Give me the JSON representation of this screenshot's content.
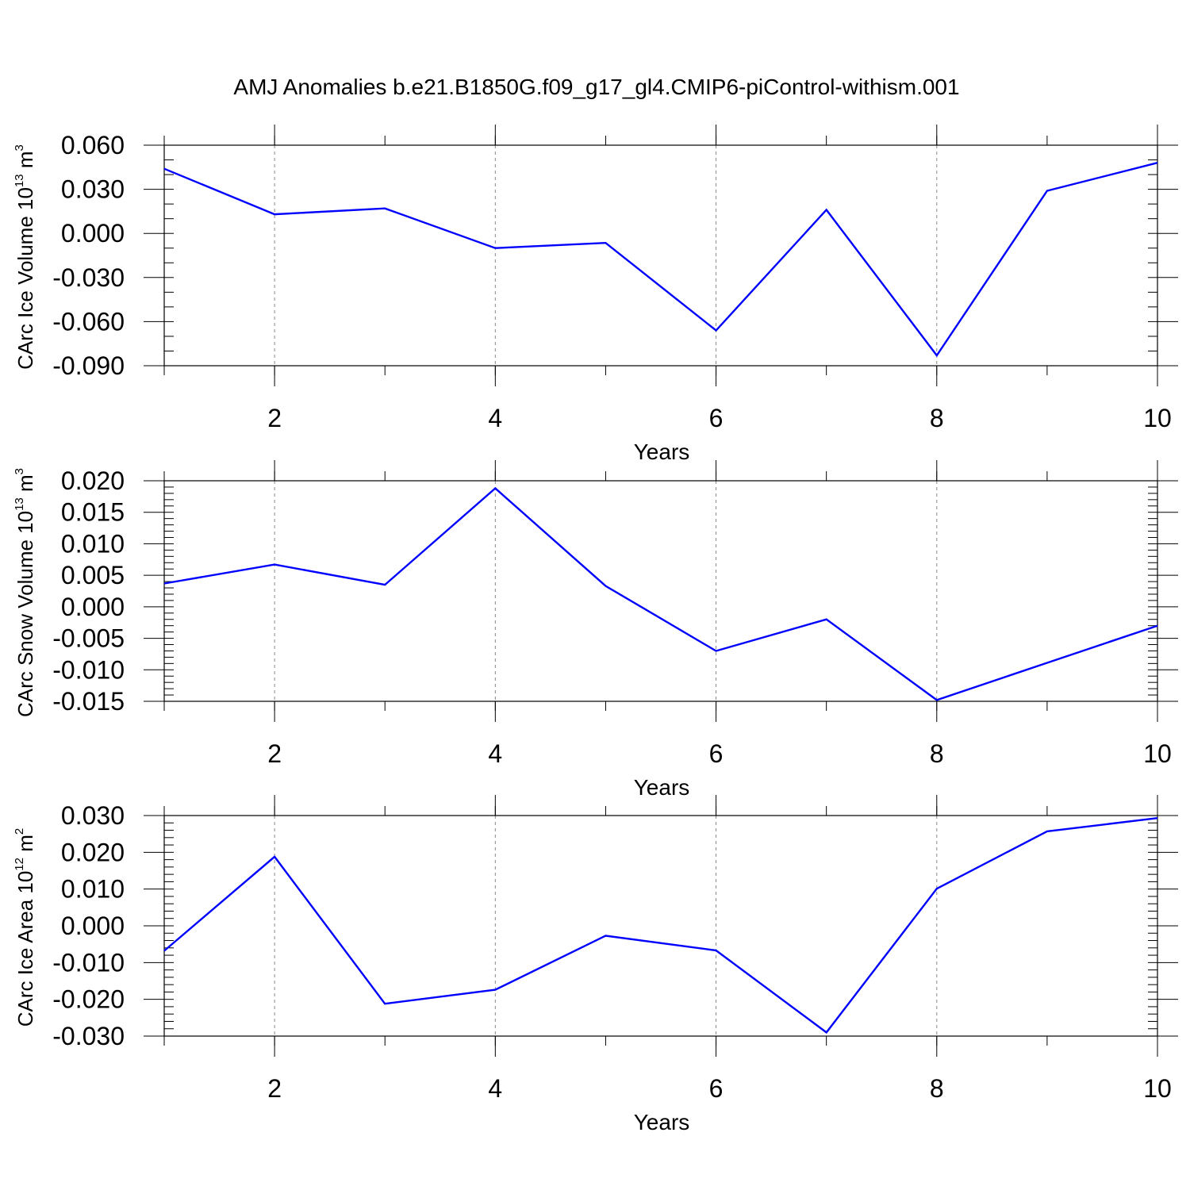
{
  "title": "AMJ Anomalies b.e21.B1850G.f09_g17_gl4.CMIP6-piControl-withism.001",
  "colors": {
    "series": "#0000ff",
    "axis": "#000000",
    "grid": "#888888"
  },
  "chart_data": [
    {
      "type": "line",
      "xlabel": "Years",
      "ylabel": {
        "text": "CArc Ice Volume 10",
        "exponent": "13",
        "unit": " m",
        "unit_exponent": "3"
      },
      "xlim": [
        1,
        10
      ],
      "ylim": [
        -0.09,
        0.06
      ],
      "xticks": [
        2,
        4,
        6,
        8,
        10
      ],
      "yticks": [
        0.06,
        0.03,
        0.0,
        -0.03,
        -0.06,
        -0.09
      ],
      "ytick_labels": [
        "0.060",
        "0.030",
        "0.000",
        "-0.030",
        "-0.060",
        "-0.090"
      ],
      "yminor_step": 0.01,
      "grid": "dashed vertical at major x ticks",
      "x": [
        1,
        2,
        3,
        4,
        5,
        6,
        7,
        8,
        9,
        10
      ],
      "y": [
        0.044,
        0.013,
        0.017,
        -0.01,
        -0.0065,
        -0.066,
        0.016,
        -0.083,
        0.029,
        0.048
      ]
    },
    {
      "type": "line",
      "xlabel": "Years",
      "ylabel": {
        "text": "CArc Snow Volume 10",
        "exponent": "13",
        "unit": " m",
        "unit_exponent": "3"
      },
      "xlim": [
        1,
        10
      ],
      "ylim": [
        -0.015,
        0.02
      ],
      "xticks": [
        2,
        4,
        6,
        8,
        10
      ],
      "yticks": [
        0.02,
        0.015,
        0.01,
        0.005,
        0.0,
        -0.005,
        -0.01,
        -0.015
      ],
      "ytick_labels": [
        "0.020",
        "0.015",
        "0.010",
        "0.005",
        "0.000",
        "-0.005",
        "-0.010",
        "-0.015"
      ],
      "yminor_step": 0.001,
      "grid": "dashed vertical at major x ticks",
      "x": [
        1,
        2,
        3,
        4,
        5,
        6,
        7,
        8,
        9,
        10
      ],
      "y": [
        0.0037,
        0.0067,
        0.0035,
        0.0188,
        0.0033,
        -0.007,
        -0.002,
        -0.0148,
        -0.0089,
        -0.003
      ]
    },
    {
      "type": "line",
      "xlabel": "Years",
      "ylabel": {
        "text": "CArc Ice Area 10",
        "exponent": "12",
        "unit": " m",
        "unit_exponent": "2"
      },
      "xlim": [
        1,
        10
      ],
      "ylim": [
        -0.03,
        0.03
      ],
      "xticks": [
        2,
        4,
        6,
        8,
        10
      ],
      "yticks": [
        0.03,
        0.02,
        0.01,
        0.0,
        -0.01,
        -0.02,
        -0.03
      ],
      "ytick_labels": [
        "0.030",
        "0.020",
        "0.010",
        "0.000",
        "-0.010",
        "-0.020",
        "-0.030"
      ],
      "yminor_step": 0.002,
      "grid": "dashed vertical at major x ticks",
      "x": [
        1,
        2,
        3,
        4,
        5,
        6,
        7,
        8,
        9,
        10
      ],
      "y": [
        -0.0068,
        0.0188,
        -0.0212,
        -0.0174,
        -0.0027,
        -0.0067,
        -0.029,
        0.0101,
        0.0257,
        0.0293
      ]
    }
  ]
}
